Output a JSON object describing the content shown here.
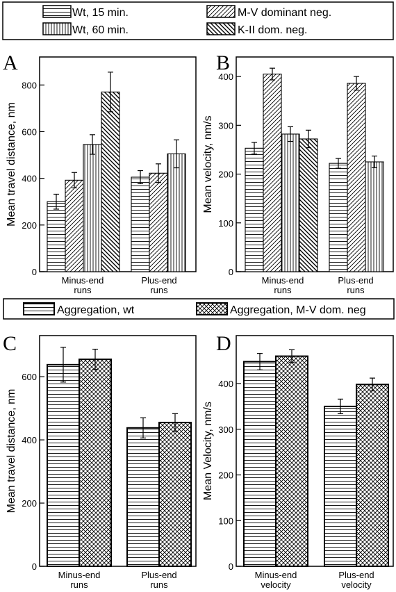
{
  "legend_top": [
    {
      "label": "Wt, 15 min.",
      "pattern": "hlines"
    },
    {
      "label": "Wt, 60 min.",
      "pattern": "vlines"
    },
    {
      "label": "M-V dominant neg.",
      "pattern": "diag"
    },
    {
      "label": "K-II dom. neg.",
      "pattern": "backdiag"
    }
  ],
  "legend_bottom": [
    {
      "label": "Aggregation, wt",
      "pattern": "hlines"
    },
    {
      "label": "Aggregation, M-V dom. neg",
      "pattern": "cross"
    }
  ],
  "chart_data": [
    {
      "panel": "A",
      "type": "bar",
      "ylabel": "Mean travel distance, nm",
      "ylim": [
        0,
        920
      ],
      "yticks": [
        0,
        200,
        400,
        600,
        800
      ],
      "categories": [
        "Minus-end\nruns",
        "Plus-end\nruns"
      ],
      "series": [
        {
          "name": "Wt, 15 min.",
          "pattern": "hlines",
          "values": [
            300,
            405
          ],
          "errors": [
            32,
            28
          ]
        },
        {
          "name": "M-V dominant neg.",
          "pattern": "diag",
          "values": [
            392,
            422
          ],
          "errors": [
            33,
            40
          ]
        },
        {
          "name": "Wt, 60 min.",
          "pattern": "vlines",
          "values": [
            545,
            505
          ],
          "errors": [
            42,
            60
          ]
        },
        {
          "name": "K-II dom. neg.",
          "pattern": "backdiag",
          "values": [
            770,
            null
          ],
          "errors": [
            85,
            null
          ]
        }
      ]
    },
    {
      "panel": "B",
      "type": "bar",
      "ylabel": "Mean velocity, nm/s",
      "ylim": [
        0,
        440
      ],
      "yticks": [
        0,
        100,
        200,
        300,
        400
      ],
      "categories": [
        "Minus-end\nruns",
        "Plus-end\nruns"
      ],
      "series": [
        {
          "name": "Wt, 15 min.",
          "pattern": "hlines",
          "values": [
            253,
            222
          ],
          "errors": [
            12,
            10
          ]
        },
        {
          "name": "M-V dominant neg.",
          "pattern": "diag",
          "values": [
            405,
            386
          ],
          "errors": [
            12,
            14
          ]
        },
        {
          "name": "Wt, 60 min.",
          "pattern": "vlines",
          "values": [
            282,
            225
          ],
          "errors": [
            15,
            12
          ]
        },
        {
          "name": "K-II dom. neg.",
          "pattern": "backdiag",
          "values": [
            272,
            null
          ],
          "errors": [
            18,
            null
          ]
        }
      ]
    },
    {
      "panel": "C",
      "type": "bar",
      "ylabel": "Mean travel distance, nm",
      "ylim": [
        0,
        730
      ],
      "yticks": [
        0,
        200,
        400,
        600
      ],
      "categories": [
        "Minus-end\nruns",
        "Plus-end\nruns"
      ],
      "series": [
        {
          "name": "Aggregation, wt",
          "pattern": "hlines",
          "values": [
            638,
            438
          ],
          "errors": [
            55,
            32
          ]
        },
        {
          "name": "Aggregation, M-V dom. neg",
          "pattern": "cross",
          "values": [
            655,
            455
          ],
          "errors": [
            32,
            28
          ]
        }
      ]
    },
    {
      "panel": "D",
      "type": "bar",
      "ylabel": "Mean Velocity, nm/s",
      "ylim": [
        0,
        505
      ],
      "yticks": [
        0,
        100,
        200,
        300,
        400
      ],
      "categories": [
        "Minus-end\nvelocity",
        "Plus-end\nvelocity"
      ],
      "series": [
        {
          "name": "Aggregation, wt",
          "pattern": "hlines",
          "values": [
            448,
            350
          ],
          "errors": [
            18,
            16
          ]
        },
        {
          "name": "Aggregation, M-V dom. neg",
          "pattern": "cross",
          "values": [
            460,
            398
          ],
          "errors": [
            14,
            14
          ]
        }
      ]
    }
  ]
}
